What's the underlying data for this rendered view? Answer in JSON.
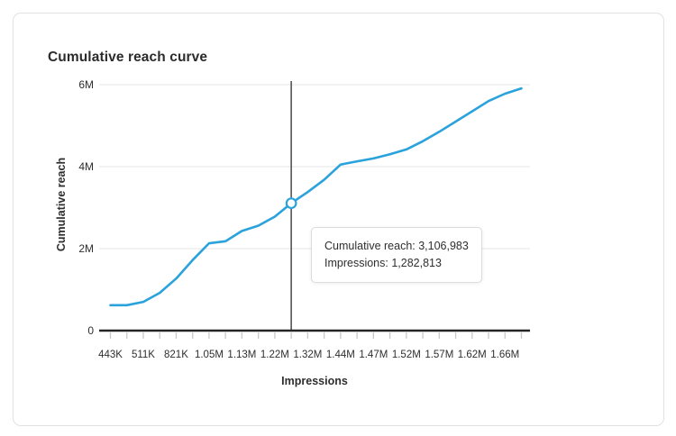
{
  "chart": {
    "title": "Cumulative reach curve",
    "xlabel": "Impressions",
    "ylabel": "Cumulative reach"
  },
  "tooltip": {
    "reach_line": "Cumulative reach: 3,106,983",
    "impressions_line": "Impressions: 1,282,813"
  },
  "colors": {
    "line_blue": "#2aa2db",
    "gridline": "#e4e4e4",
    "x_axis": "#252525",
    "tick": "#c9c9c9",
    "hover_line": "#555555",
    "text": "#2e2e2e"
  },
  "chart_data": {
    "type": "line",
    "title": "Cumulative reach curve",
    "xlabel": "Impressions",
    "ylabel": "Cumulative reach",
    "grid": "horizontal",
    "legend": "none",
    "ylim_millions": [
      0,
      6
    ],
    "y_ticks": [
      {
        "label": "0",
        "value_millions": 0
      },
      {
        "label": "2M",
        "value_millions": 2
      },
      {
        "label": "4M",
        "value_millions": 4
      },
      {
        "label": "6M",
        "value_millions": 6
      }
    ],
    "x_tick_labels": [
      "443K",
      "511K",
      "821K",
      "1.05M",
      "1.13M",
      "1.22M",
      "1.32M",
      "1.44M",
      "1.47M",
      "1.52M",
      "1.57M",
      "1.62M",
      "1.66M"
    ],
    "x_ticks_total": 26,
    "x_label_every_n_ticks": 2,
    "series": [
      {
        "name": "Cumulative reach",
        "values_millions": [
          0.62,
          0.62,
          0.7,
          0.92,
          1.27,
          1.72,
          2.13,
          2.18,
          2.43,
          2.56,
          2.78,
          3.107,
          3.38,
          3.68,
          4.05,
          4.13,
          4.2,
          4.3,
          4.42,
          4.62,
          4.85,
          5.1,
          5.35,
          5.6,
          5.78,
          5.91
        ]
      }
    ],
    "highlight": {
      "point_index": 11,
      "impressions": "1,282,813",
      "cumulative_reach": "3,106,983"
    }
  }
}
